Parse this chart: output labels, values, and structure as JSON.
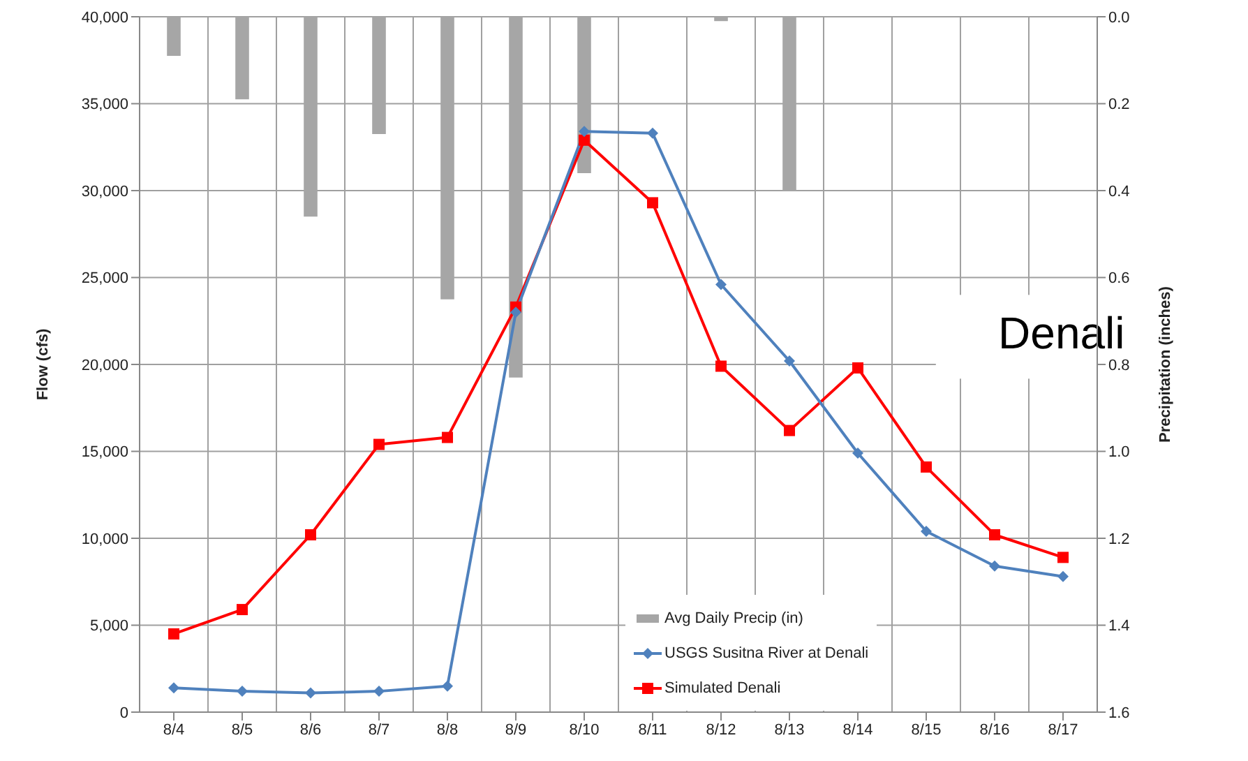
{
  "chart_data": {
    "type": "line",
    "xlabel": null,
    "ylabel": "Flow (cfs)",
    "y2label": "Precipitation (inches)",
    "categories": [
      "8/4",
      "8/5",
      "8/6",
      "8/7",
      "8/8",
      "8/9",
      "8/10",
      "8/11",
      "8/12",
      "8/13",
      "8/14",
      "8/15",
      "8/16",
      "8/17"
    ],
    "series": [
      {
        "name": "Avg Daily Precip (in)",
        "type": "bar",
        "axis": "y2",
        "color": "#a6a6a6",
        "values": [
          0.09,
          0.19,
          0.46,
          0.27,
          0.65,
          0.83,
          0.36,
          0.0,
          0.01,
          0.4,
          0,
          0,
          0,
          0
        ]
      },
      {
        "name": "USGS Susitna River at Denali",
        "color": "#4f81bd",
        "marker": "diamond",
        "values": [
          1400,
          1200,
          1100,
          1200,
          1500,
          23000,
          33400,
          33300,
          24600,
          20200,
          14900,
          10400,
          8400,
          7800
        ]
      },
      {
        "name": "Simulated Denali",
        "color": "#ff0000",
        "marker": "square",
        "values": [
          4500,
          5900,
          10200,
          15400,
          15800,
          23300,
          32900,
          29300,
          19900,
          16200,
          19800,
          14100,
          10200,
          8900
        ]
      }
    ],
    "ylim": [
      0,
      40000
    ],
    "yticks": [
      0,
      {
        "value": 5000,
        "label": "5,000"
      },
      {
        "value": 10000,
        "label": "10,000"
      },
      {
        "value": 15000,
        "label": "15,000"
      },
      {
        "value": 20000,
        "label": "20,000"
      },
      {
        "value": 25000,
        "label": "25,000"
      },
      {
        "value": 30000,
        "label": "30,000"
      },
      {
        "value": 35000,
        "label": "35,000"
      },
      {
        "value": 40000,
        "label": "40,000"
      }
    ],
    "y2lim": [
      1.6,
      0
    ],
    "y2ticks": [
      {
        "value": 0,
        "label": "0.0"
      },
      0.2,
      0.4,
      0.6,
      0.8,
      {
        "value": 1,
        "label": "1.0"
      },
      1.2,
      1.4,
      1.6
    ],
    "annotations": [
      "Denali"
    ],
    "grid": true,
    "legend": "bottom"
  }
}
